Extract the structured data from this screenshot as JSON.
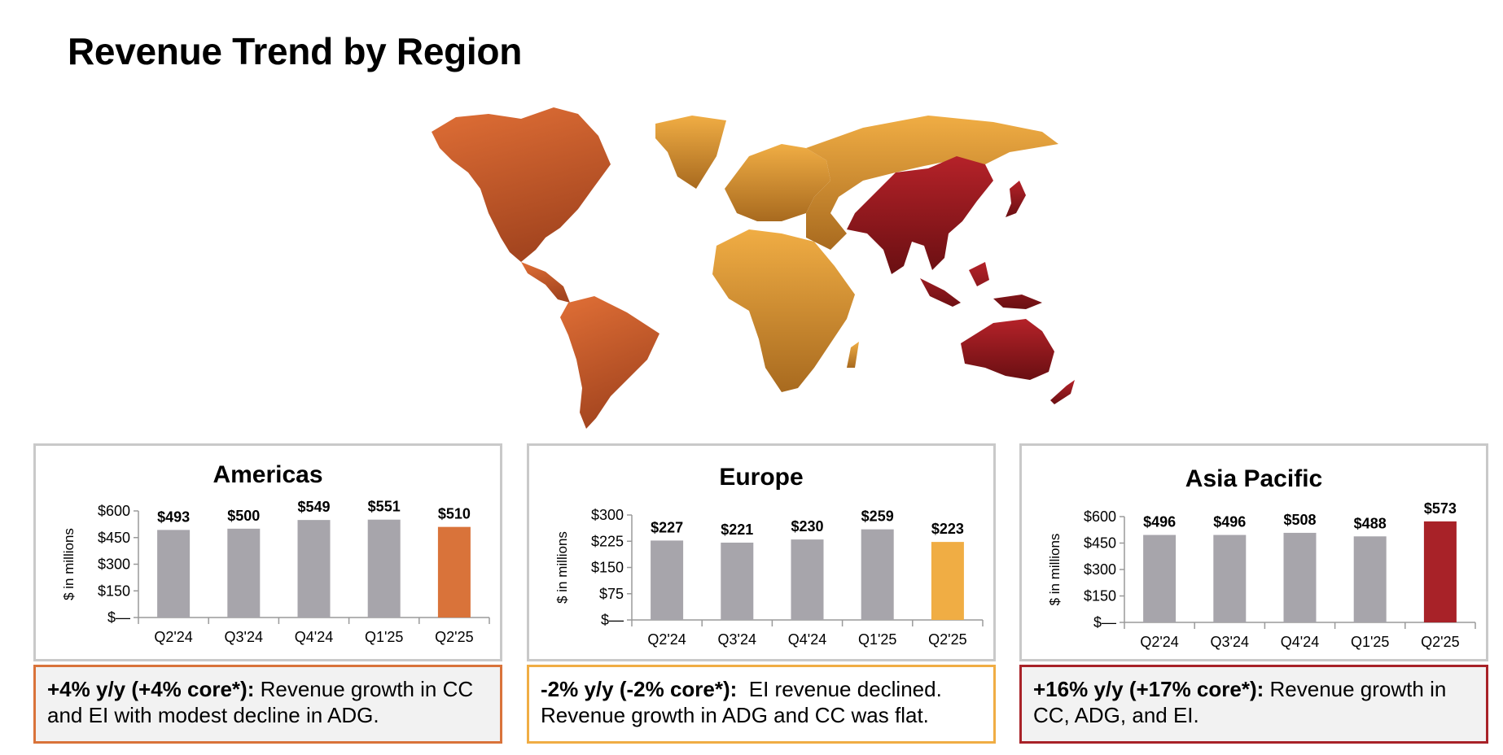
{
  "page_title": "Revenue Trend by Region",
  "colors": {
    "americas": "#d9733a",
    "europe": "#f0ad44",
    "apac": "#a82228",
    "bar_gray": "#a7a5ab",
    "panel_border": "#c9c9c9"
  },
  "chart_data": [
    {
      "type": "bar",
      "title": "Americas",
      "ylabel": "$ in millions",
      "categories": [
        "Q2'24",
        "Q3'24",
        "Q4'24",
        "Q1'25",
        "Q2'25"
      ],
      "values": [
        493,
        500,
        549,
        551,
        510
      ],
      "value_labels": [
        "$493",
        "$500",
        "$549",
        "$551",
        "$510"
      ],
      "yticks": [
        0,
        150,
        300,
        450,
        600
      ],
      "ytick_labels": [
        "$—",
        "$150",
        "$300",
        "$450",
        "$600"
      ],
      "ylim": [
        0,
        600
      ],
      "highlight_color": "#d9733a"
    },
    {
      "type": "bar",
      "title": "Europe",
      "ylabel": "$ in millions",
      "categories": [
        "Q2'24",
        "Q3'24",
        "Q4'24",
        "Q1'25",
        "Q2'25"
      ],
      "values": [
        227,
        221,
        230,
        259,
        223
      ],
      "value_labels": [
        "$227",
        "$221",
        "$230",
        "$259",
        "$223"
      ],
      "yticks": [
        0,
        75,
        150,
        225,
        300
      ],
      "ytick_labels": [
        "$—",
        "$75",
        "$150",
        "$225",
        "$300"
      ],
      "ylim": [
        0,
        300
      ],
      "highlight_color": "#f0ad44"
    },
    {
      "type": "bar",
      "title": "Asia Pacific",
      "ylabel": "$ in millions",
      "categories": [
        "Q2'24",
        "Q3'24",
        "Q4'24",
        "Q1'25",
        "Q2'25"
      ],
      "values": [
        496,
        496,
        508,
        488,
        573
      ],
      "value_labels": [
        "$496",
        "$496",
        "$508",
        "$488",
        "$573"
      ],
      "yticks": [
        0,
        150,
        300,
        450,
        600
      ],
      "ytick_labels": [
        "$—",
        "$150",
        "$300",
        "$450",
        "$600"
      ],
      "ylim": [
        0,
        600
      ],
      "highlight_color": "#a82228"
    }
  ],
  "notes": {
    "americas": {
      "bold": "+4% y/y (+4% core*):",
      "text": " Revenue growth in CC and EI with modest decline in ADG."
    },
    "europe": {
      "bold": "-2% y/y (-2% core*):",
      "text": "  EI revenue declined. Revenue growth in ADG and CC was flat."
    },
    "apac": {
      "bold": "+16% y/y (+17% core*):",
      "text": " Revenue growth in CC, ADG, and EI."
    }
  }
}
